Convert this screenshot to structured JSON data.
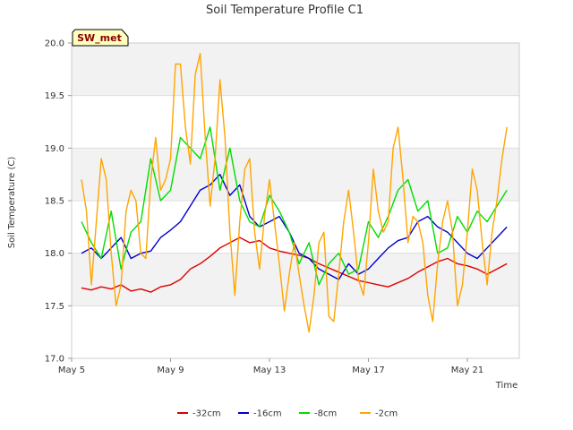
{
  "chart_data": {
    "type": "line",
    "title": "Soil Temperature Profile C1",
    "xlabel": "Time",
    "ylabel": "Soil Temperature (C)",
    "station_badge": "SW_met",
    "x_ticks": [
      {
        "day": 5,
        "label": "May 5"
      },
      {
        "day": 9,
        "label": "May 9"
      },
      {
        "day": 13,
        "label": "May 13"
      },
      {
        "day": 17,
        "label": "May 17"
      },
      {
        "day": 21,
        "label": "May 21"
      }
    ],
    "xlim_days": [
      5,
      23.1
    ],
    "ylim": [
      17.0,
      20.0
    ],
    "y_ticks": [
      "17.0",
      "17.5",
      "18.0",
      "18.5",
      "19.0",
      "19.5",
      "20.0"
    ],
    "grid": true,
    "legend_position": "bottom",
    "series": [
      {
        "name": "-32cm",
        "color": "#dd0000",
        "x": [
          5.4,
          5.8,
          6.2,
          6.6,
          7.0,
          7.4,
          7.8,
          8.2,
          8.6,
          9.0,
          9.4,
          9.8,
          10.2,
          10.6,
          11.0,
          11.4,
          11.8,
          12.2,
          12.6,
          13.0,
          13.4,
          13.8,
          14.2,
          14.6,
          15.0,
          15.4,
          15.8,
          16.2,
          16.6,
          17.0,
          17.4,
          17.8,
          18.2,
          18.6,
          19.0,
          19.4,
          19.8,
          20.2,
          20.6,
          21.0,
          21.4,
          21.8,
          22.2,
          22.6
        ],
        "y": [
          17.67,
          17.65,
          17.68,
          17.66,
          17.7,
          17.64,
          17.66,
          17.63,
          17.68,
          17.7,
          17.75,
          17.85,
          17.9,
          17.97,
          18.05,
          18.1,
          18.15,
          18.1,
          18.12,
          18.05,
          18.02,
          18.0,
          17.98,
          17.95,
          17.9,
          17.86,
          17.82,
          17.78,
          17.74,
          17.72,
          17.7,
          17.68,
          17.72,
          17.76,
          17.82,
          17.87,
          17.92,
          17.95,
          17.9,
          17.88,
          17.85,
          17.8,
          17.85,
          17.9
        ]
      },
      {
        "name": "-16cm",
        "color": "#0000cc",
        "x": [
          5.4,
          5.8,
          6.2,
          6.6,
          7.0,
          7.4,
          7.8,
          8.2,
          8.6,
          9.0,
          9.4,
          9.8,
          10.2,
          10.6,
          11.0,
          11.4,
          11.8,
          12.2,
          12.6,
          13.0,
          13.4,
          13.8,
          14.2,
          14.6,
          15.0,
          15.4,
          15.8,
          16.2,
          16.6,
          17.0,
          17.4,
          17.8,
          18.2,
          18.6,
          19.0,
          19.4,
          19.8,
          20.2,
          20.6,
          21.0,
          21.4,
          21.8,
          22.2,
          22.6
        ],
        "y": [
          18.0,
          18.05,
          17.95,
          18.05,
          18.15,
          17.95,
          18.0,
          18.02,
          18.15,
          18.22,
          18.3,
          18.45,
          18.6,
          18.65,
          18.75,
          18.55,
          18.65,
          18.35,
          18.25,
          18.3,
          18.35,
          18.2,
          18.0,
          17.95,
          17.85,
          17.8,
          17.75,
          17.9,
          17.8,
          17.85,
          17.95,
          18.05,
          18.12,
          18.15,
          18.3,
          18.35,
          18.25,
          18.2,
          18.1,
          18.0,
          17.95,
          18.05,
          18.15,
          18.25
        ]
      },
      {
        "name": "-8cm",
        "color": "#00dd00",
        "x": [
          5.4,
          5.8,
          6.2,
          6.6,
          7.0,
          7.4,
          7.8,
          8.2,
          8.6,
          9.0,
          9.4,
          9.8,
          10.2,
          10.6,
          11.0,
          11.4,
          11.8,
          12.2,
          12.6,
          13.0,
          13.4,
          13.8,
          14.2,
          14.6,
          15.0,
          15.4,
          15.8,
          16.2,
          16.6,
          17.0,
          17.4,
          17.8,
          18.2,
          18.6,
          19.0,
          19.4,
          19.8,
          20.2,
          20.6,
          21.0,
          21.4,
          21.8,
          22.2,
          22.6
        ],
        "y": [
          18.3,
          18.1,
          17.95,
          18.4,
          17.85,
          18.2,
          18.3,
          18.9,
          18.5,
          18.6,
          19.1,
          19.0,
          18.9,
          19.2,
          18.6,
          19.0,
          18.5,
          18.3,
          18.25,
          18.55,
          18.4,
          18.2,
          17.9,
          18.1,
          17.7,
          17.9,
          18.0,
          17.8,
          17.85,
          18.3,
          18.15,
          18.35,
          18.6,
          18.7,
          18.4,
          18.5,
          18.0,
          18.05,
          18.35,
          18.2,
          18.4,
          18.3,
          18.45,
          18.6
        ]
      },
      {
        "name": "-2cm",
        "color": "#ffa500",
        "x": [
          5.4,
          5.6,
          5.8,
          6.0,
          6.2,
          6.4,
          6.6,
          6.8,
          7.0,
          7.2,
          7.4,
          7.6,
          7.8,
          8.0,
          8.2,
          8.4,
          8.6,
          8.8,
          9.0,
          9.2,
          9.4,
          9.6,
          9.8,
          10.0,
          10.2,
          10.4,
          10.6,
          10.8,
          11.0,
          11.2,
          11.4,
          11.6,
          11.8,
          12.0,
          12.2,
          12.4,
          12.6,
          12.8,
          13.0,
          13.2,
          13.4,
          13.6,
          13.8,
          14.0,
          14.2,
          14.4,
          14.6,
          14.8,
          15.0,
          15.2,
          15.4,
          15.6,
          15.8,
          16.0,
          16.2,
          16.4,
          16.6,
          16.8,
          17.0,
          17.2,
          17.4,
          17.6,
          17.8,
          18.0,
          18.2,
          18.4,
          18.6,
          18.8,
          19.0,
          19.2,
          19.4,
          19.6,
          19.8,
          20.0,
          20.2,
          20.4,
          20.6,
          20.8,
          21.0,
          21.2,
          21.4,
          21.6,
          21.8,
          22.0,
          22.2,
          22.4,
          22.6
        ],
        "y": [
          18.7,
          18.4,
          17.7,
          18.3,
          18.9,
          18.7,
          18.0,
          17.5,
          17.7,
          18.4,
          18.6,
          18.5,
          18.0,
          17.95,
          18.7,
          19.1,
          18.6,
          18.7,
          18.9,
          19.8,
          19.8,
          19.2,
          18.85,
          19.7,
          19.9,
          19.1,
          18.45,
          18.9,
          19.65,
          19.1,
          18.2,
          17.6,
          18.3,
          18.8,
          18.9,
          18.2,
          17.85,
          18.35,
          18.7,
          18.3,
          17.9,
          17.45,
          17.8,
          18.1,
          17.8,
          17.5,
          17.25,
          17.6,
          18.1,
          18.2,
          17.4,
          17.35,
          17.8,
          18.3,
          18.6,
          18.2,
          17.75,
          17.6,
          18.1,
          18.8,
          18.4,
          18.2,
          18.3,
          19.0,
          19.2,
          18.7,
          18.1,
          18.35,
          18.3,
          18.1,
          17.6,
          17.35,
          17.9,
          18.3,
          18.5,
          18.2,
          17.5,
          17.7,
          18.2,
          18.8,
          18.6,
          18.1,
          17.7,
          18.2,
          18.5,
          18.9,
          19.2
        ]
      }
    ]
  }
}
